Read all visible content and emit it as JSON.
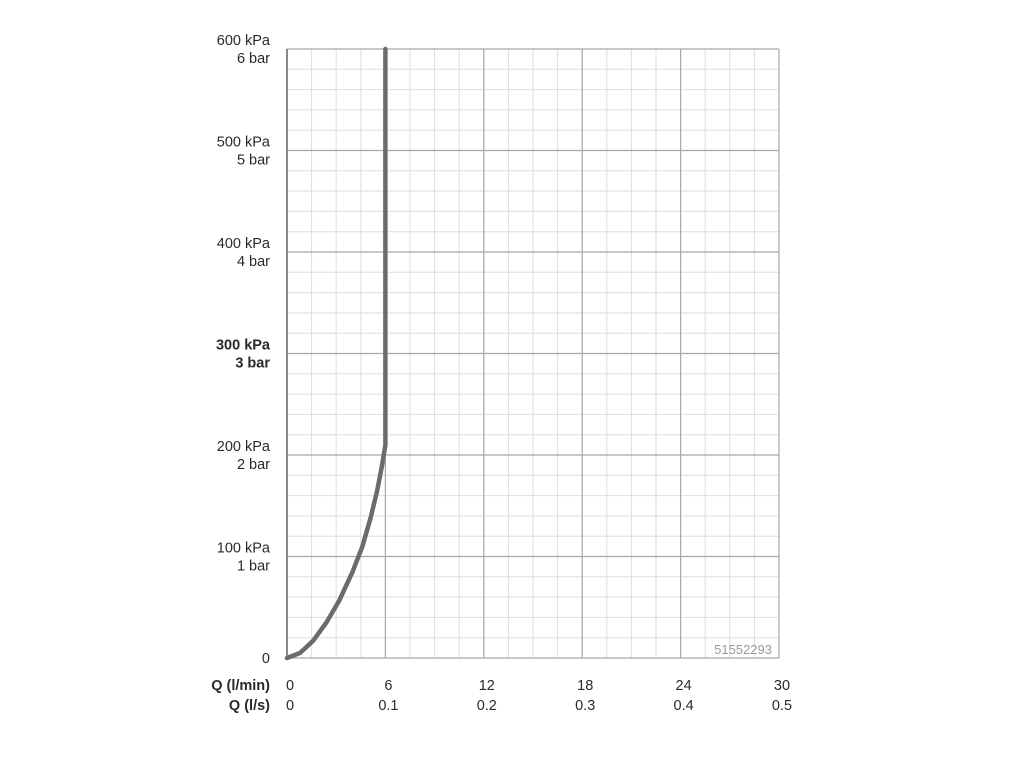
{
  "chart_data": {
    "type": "line",
    "code": "51552293",
    "x_rows": [
      {
        "label": "Q (l/min)",
        "ticks": [
          "0",
          "6",
          "12",
          "18",
          "24",
          "30"
        ]
      },
      {
        "label": "Q (l/s)",
        "ticks": [
          "0",
          "0.1",
          "0.2",
          "0.3",
          "0.4",
          "0.5"
        ]
      }
    ],
    "y_ticks": [
      {
        "value": 0,
        "kpa": "0",
        "bar": "",
        "bold": false
      },
      {
        "value": 100,
        "kpa": "100 kPa",
        "bar": "1 bar",
        "bold": false
      },
      {
        "value": 200,
        "kpa": "200 kPa",
        "bar": "2 bar",
        "bold": false
      },
      {
        "value": 300,
        "kpa": "300 kPa",
        "bar": "3 bar",
        "bold": true
      },
      {
        "value": 400,
        "kpa": "400 kPa",
        "bar": "4 bar",
        "bold": false
      },
      {
        "value": 500,
        "kpa": "500 kPa",
        "bar": "5 bar",
        "bold": false
      },
      {
        "value": 600,
        "kpa": "600 kPa",
        "bar": "6 bar",
        "bold": false
      }
    ],
    "xlim": [
      0,
      30
    ],
    "ylim": [
      0,
      600
    ],
    "major_grid_x": 6,
    "minor_grid_x": 1.5,
    "major_grid_y": 100,
    "minor_grid_y": 20,
    "grid": true,
    "series": [
      {
        "color": "#6b6b6b",
        "x": [
          0,
          0.8,
          1.6,
          2.4,
          3.2,
          4.0,
          4.6,
          5.1,
          5.5,
          5.8,
          6.0,
          6.0,
          6.0
        ],
        "y": [
          0,
          5,
          17,
          35,
          57,
          85,
          110,
          138,
          165,
          190,
          210,
          300,
          600
        ]
      }
    ]
  }
}
